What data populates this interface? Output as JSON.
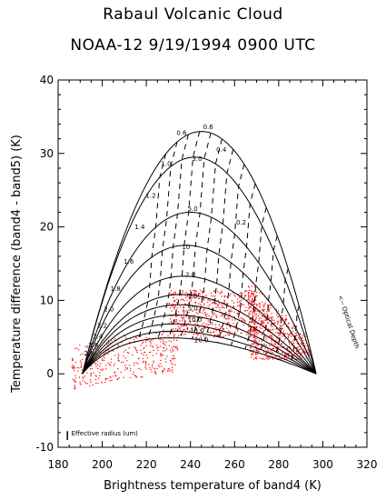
{
  "header": {
    "title": "Rabaul Volcanic Cloud",
    "subtitle": "NOAA-12 9/19/1994 0900 UTC"
  },
  "chart_data": {
    "type": "scatter",
    "title": "Rabaul Volcanic Cloud",
    "subtitle": "NOAA-12 9/19/1994 0900 UTC",
    "xlabel": "Brightness temperature of band4 (K)",
    "ylabel": "Temperature difference (band4 - band5) (K)",
    "xlim": [
      180,
      320
    ],
    "ylim": [
      -10,
      40
    ],
    "x_ticks": [
      180,
      200,
      220,
      240,
      260,
      280,
      300,
      320
    ],
    "y_ticks": [
      -10,
      0,
      10,
      20,
      30,
      40
    ],
    "anchor_left": [
      191,
      0
    ],
    "anchor_right": [
      297,
      0
    ],
    "effective_radius_curves": [
      {
        "label": "0.6",
        "peak": [
          245,
          33
        ]
      },
      {
        "label": "1.0",
        "peak": [
          242,
          29.5
        ]
      },
      {
        "label": "1.2",
        "peak": [
          240,
          22
        ]
      },
      {
        "label": "1.4",
        "peak": [
          238,
          17.5
        ]
      },
      {
        "label": "1.6",
        "peak": [
          237,
          13.3
        ]
      },
      {
        "label": "1.8",
        "peak": [
          236,
          10.8
        ]
      },
      {
        "label": "2.0",
        "peak": [
          235,
          9.4
        ]
      },
      {
        "label": "2.2",
        "peak": [
          234,
          8.0
        ]
      },
      {
        "label": "2.4",
        "peak": [
          233,
          6.8
        ]
      },
      {
        "label": "2.6",
        "peak": [
          232,
          5.8
        ]
      },
      {
        "label": "2.8",
        "peak": [
          231,
          4.9
        ]
      }
    ],
    "curve_labels": [
      {
        "text": "0.6",
        "x": 236,
        "y": 32.5
      },
      {
        "text": "1.0",
        "x": 229,
        "y": 28.3
      },
      {
        "text": "1.2",
        "x": 222,
        "y": 24.0
      },
      {
        "text": "1.4",
        "x": 217,
        "y": 19.7
      },
      {
        "text": "1.6",
        "x": 212,
        "y": 15.0
      },
      {
        "text": "1.8",
        "x": 206,
        "y": 11.3
      },
      {
        "text": "2.0",
        "x": 203,
        "y": 8.5
      },
      {
        "text": "2.2",
        "x": 200,
        "y": 6.3
      },
      {
        "text": "2.4",
        "x": 198,
        "y": 4.8
      },
      {
        "text": "2.6",
        "x": 196,
        "y": 3.6
      },
      {
        "text": "2.8",
        "x": 194,
        "y": 2.5
      }
    ],
    "optical_depth_labels": [
      {
        "text": "0.6",
        "x": 248,
        "y": 33.3
      },
      {
        "text": "0.4",
        "x": 254,
        "y": 30.2
      },
      {
        "text": "3.0",
        "x": 243,
        "y": 29.0
      },
      {
        "text": "5.0",
        "x": 241,
        "y": 22.2
      },
      {
        "text": "0.2",
        "x": 263,
        "y": 20.3
      },
      {
        "text": "10",
        "x": 238,
        "y": 17.0
      },
      {
        "text": "2.0",
        "x": 240,
        "y": 13.2
      },
      {
        "text": "1.0",
        "x": 241,
        "y": 10.3
      },
      {
        "text": "5.0",
        "x": 241,
        "y": 8.6
      },
      {
        "text": "10.0",
        "x": 242,
        "y": 7.1
      },
      {
        "text": "15.0",
        "x": 243,
        "y": 5.6
      },
      {
        "text": "20.0",
        "x": 245,
        "y": 4.3
      }
    ],
    "annotations": {
      "effective_radius": "Effective radius (um)",
      "optical_depth": "<-- Optical Depth"
    },
    "series": [
      {
        "color": "#ff0000",
        "description": "volcanic cloud pixels, dense cluster"
      },
      {
        "color": "#ff0000",
        "description": "sparse pixels at low temperature"
      }
    ],
    "colors": {
      "curves": "#000000",
      "points": "#ff0000"
    }
  }
}
